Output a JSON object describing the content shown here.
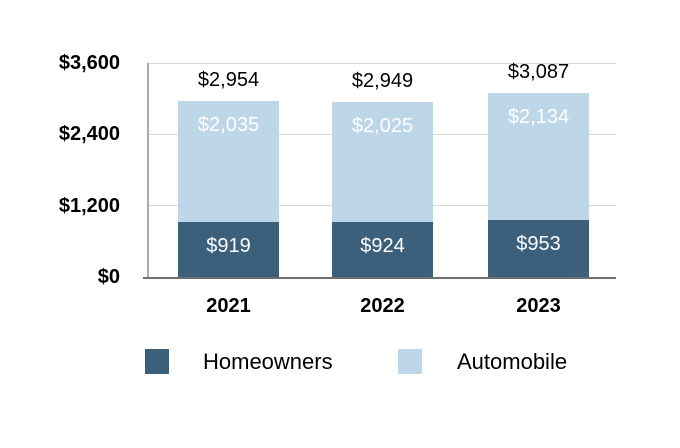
{
  "chart_data": {
    "type": "bar",
    "stacked": true,
    "title": "",
    "categories": [
      "2021",
      "2022",
      "2023"
    ],
    "series": [
      {
        "name": "Homeowners",
        "color": "#3C5F7B",
        "values": [
          919,
          924,
          953
        ],
        "value_labels": [
          "$919",
          "$924",
          "$953"
        ],
        "label_color": "#FFFFFF"
      },
      {
        "name": "Automobile",
        "color": "#BDD7E9",
        "values": [
          2035,
          2025,
          2134
        ],
        "value_labels": [
          "$2,035",
          "$2,025",
          "$2,134"
        ],
        "label_color": "#FFFFFF"
      }
    ],
    "totals": [
      2954,
      2949,
      3087
    ],
    "total_labels": [
      "$2,954",
      "$2,949",
      "$3,087"
    ],
    "y_axis": {
      "min": 0,
      "max": 3600,
      "tick_values": [
        0,
        1200,
        2400,
        3600
      ],
      "tick_labels": [
        "$0",
        "$1,200",
        "$2,400",
        "$3,600"
      ]
    },
    "grid": true,
    "legend_position": "bottom",
    "colors": {
      "gridline": "#D9D9D9",
      "x_axis_line": "#6E6E6E",
      "y_axis_line": "#ABABAB",
      "text": "#000000",
      "background": "#FFFFFF"
    }
  }
}
